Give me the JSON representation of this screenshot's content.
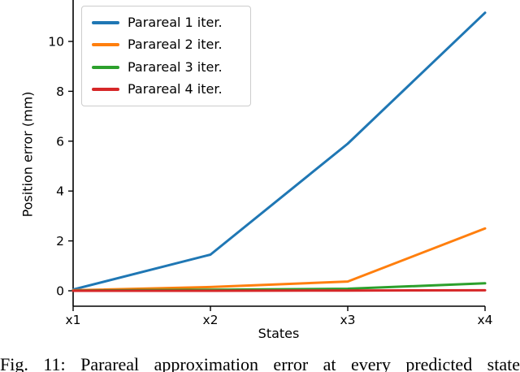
{
  "figure": {
    "caption": "Fig. 11: Parareal approximation error at every predicted state"
  },
  "chart_data": {
    "type": "line",
    "title": "",
    "xlabel": "States",
    "ylabel": "Position error (mm)",
    "categories": [
      "x1",
      "x2",
      "x3",
      "x4"
    ],
    "yticks": [
      "0",
      "2",
      "4",
      "6",
      "8",
      "10"
    ],
    "ytick_values": [
      0,
      2,
      4,
      6,
      8,
      10
    ],
    "ylim_visible": [
      -0.6,
      11.6
    ],
    "grid": false,
    "legend_position": "upper-left",
    "series": [
      {
        "name": "Parareal 1 iter.",
        "color": "#1f77b4",
        "values": [
          0.05,
          1.45,
          5.9,
          11.15
        ]
      },
      {
        "name": "Parareal 2 iter.",
        "color": "#ff7f0e",
        "values": [
          0.02,
          0.15,
          0.37,
          2.5
        ]
      },
      {
        "name": "Parareal 3 iter.",
        "color": "#2ca02c",
        "values": [
          0.01,
          0.04,
          0.08,
          0.3
        ]
      },
      {
        "name": "Parareal 4 iter.",
        "color": "#d62728",
        "values": [
          0.0,
          0.0,
          0.01,
          0.02
        ]
      }
    ]
  }
}
